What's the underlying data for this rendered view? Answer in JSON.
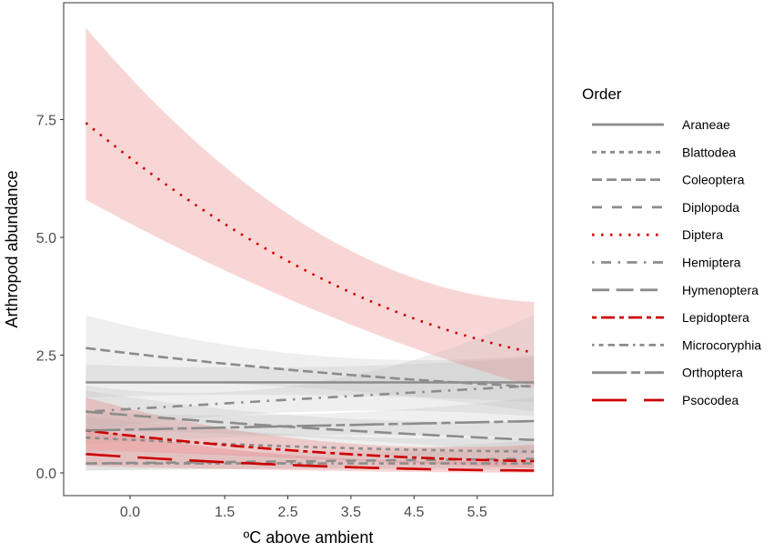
{
  "chart_data": {
    "type": "line",
    "title": "",
    "xlabel": "ºC above ambient",
    "ylabel": "Arthropod abundance",
    "xlim": [
      -1.05,
      6.75
    ],
    "ylim": [
      -0.4,
      10.0
    ],
    "x_ticks": [
      0.0,
      1.5,
      2.5,
      3.5,
      4.5,
      5.5
    ],
    "x_tick_labels": [
      "0.0",
      "1.5",
      "2.5",
      "3.5",
      "4.5",
      "5.5"
    ],
    "y_ticks": [
      0.0,
      2.5,
      5.0,
      7.5
    ],
    "y_tick_labels": [
      "0.0",
      "2.5",
      "5.0",
      "7.5"
    ],
    "grid": false,
    "legend_title": "Order",
    "legend_position": "right",
    "x": [
      -0.7,
      2.85,
      6.4
    ],
    "series": [
      {
        "name": "Araneae",
        "color": "#8c8c8c",
        "values": [
          1.92,
          1.92,
          1.92
        ],
        "lower": [
          1.6,
          1.65,
          1.5
        ],
        "upper": [
          2.3,
          2.25,
          2.45
        ]
      },
      {
        "name": "Blattodea",
        "color": "#8c8c8c",
        "values": [
          0.75,
          0.55,
          0.45
        ],
        "lower": [
          0.45,
          0.4,
          0.25
        ],
        "upper": [
          1.2,
          0.8,
          0.75
        ]
      },
      {
        "name": "Coleoptera",
        "color": "#8c8c8c",
        "values": [
          2.65,
          2.15,
          1.83
        ],
        "lower": [
          1.95,
          1.8,
          1.3
        ],
        "upper": [
          3.35,
          2.5,
          2.5
        ]
      },
      {
        "name": "Diplopoda",
        "color": "#8c8c8c",
        "values": [
          0.2,
          0.25,
          0.3
        ],
        "lower": [
          0.05,
          0.1,
          0.1
        ],
        "upper": [
          0.5,
          0.45,
          0.7
        ]
      },
      {
        "name": "Diptera",
        "color": "#cc0000",
        "values": [
          7.43,
          4.25,
          2.55
        ],
        "lower": [
          5.8,
          3.5,
          1.83
        ],
        "upper": [
          9.45,
          5.2,
          3.63
        ]
      },
      {
        "name": "Hemiptera",
        "color": "#8c8c8c",
        "values": [
          1.3,
          1.58,
          1.85
        ],
        "lower": [
          0.9,
          1.3,
          1.2
        ],
        "upper": [
          1.85,
          1.9,
          3.35
        ]
      },
      {
        "name": "Hymenoptera",
        "color": "#8c8c8c",
        "values": [
          1.3,
          0.95,
          0.7
        ],
        "lower": [
          0.9,
          0.75,
          0.4
        ],
        "upper": [
          1.75,
          1.2,
          1.1
        ]
      },
      {
        "name": "Lepidoptera",
        "color": "#cc0000",
        "values": [
          0.9,
          0.45,
          0.25
        ],
        "lower": [
          0.5,
          0.3,
          0.1
        ],
        "upper": [
          1.6,
          0.7,
          0.6
        ]
      },
      {
        "name": "Microcoryphia",
        "color": "#8c8c8c",
        "values": [
          0.2,
          0.2,
          0.2
        ],
        "lower": [
          0.05,
          0.08,
          0.05
        ],
        "upper": [
          0.5,
          0.4,
          0.55
        ]
      },
      {
        "name": "Orthoptera",
        "color": "#8c8c8c",
        "values": [
          0.9,
          1.0,
          1.1
        ],
        "lower": [
          0.6,
          0.8,
          0.75
        ],
        "upper": [
          1.3,
          1.25,
          1.6
        ]
      },
      {
        "name": "Psocodea",
        "color": "#cc0000",
        "values": [
          0.4,
          0.15,
          0.05
        ],
        "lower": [
          0.15,
          0.05,
          0.0
        ],
        "upper": [
          0.95,
          0.35,
          0.3
        ]
      }
    ]
  }
}
